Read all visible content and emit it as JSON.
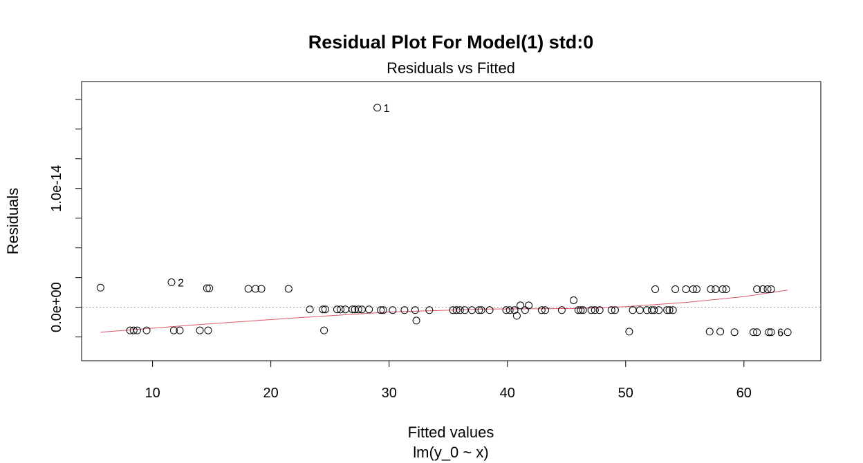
{
  "chart_data": {
    "type": "scatter",
    "title": "Residual Plot For Model(1) std:0",
    "subtitle": "Residuals vs Fitted",
    "xlabel": "Fitted values",
    "xlabel2": "lm(y_0 ~ x)",
    "ylabel": "Residuals",
    "xlim": [
      4,
      66.5
    ],
    "ylim": [
      -4.5e-15,
      1.9e-14
    ],
    "x_ticks": [
      10,
      20,
      30,
      40,
      50,
      60
    ],
    "y_ticks": [
      -2.5e-15,
      0,
      2.5e-15,
      5e-15,
      7.5e-15,
      1e-14,
      1.25e-14,
      1.5e-14,
      1.75e-14
    ],
    "y_tick_labels": [
      {
        "value": 0,
        "label": "0.0e+00"
      },
      {
        "value": 1e-14,
        "label": "1.0e-14"
      }
    ],
    "reference_line": 0,
    "grid": false,
    "points": [
      {
        "x": 5.6,
        "y": 1.65e-15
      },
      {
        "x": 8.1,
        "y": -1.95e-15
      },
      {
        "x": 8.4,
        "y": -1.95e-15
      },
      {
        "x": 8.7,
        "y": -1.95e-15
      },
      {
        "x": 9.5,
        "y": -1.95e-15
      },
      {
        "x": 11.6,
        "y": 2.1e-15
      },
      {
        "x": 11.8,
        "y": -1.95e-15
      },
      {
        "x": 12.3,
        "y": -1.95e-15
      },
      {
        "x": 14.0,
        "y": -1.95e-15
      },
      {
        "x": 14.6,
        "y": 1.6e-15
      },
      {
        "x": 14.8,
        "y": 1.6e-15
      },
      {
        "x": 14.7,
        "y": -1.95e-15
      },
      {
        "x": 18.1,
        "y": 1.55e-15
      },
      {
        "x": 18.7,
        "y": 1.55e-15
      },
      {
        "x": 19.2,
        "y": 1.55e-15
      },
      {
        "x": 21.5,
        "y": 1.55e-15
      },
      {
        "x": 23.3,
        "y": -1.8e-16
      },
      {
        "x": 24.4,
        "y": -1.8e-16
      },
      {
        "x": 24.6,
        "y": -1.8e-16
      },
      {
        "x": 24.5,
        "y": -1.95e-15
      },
      {
        "x": 25.6,
        "y": -1.8e-16
      },
      {
        "x": 25.9,
        "y": -1.8e-16
      },
      {
        "x": 26.3,
        "y": -1.8e-16
      },
      {
        "x": 26.9,
        "y": -1.8e-16
      },
      {
        "x": 27.1,
        "y": -1.8e-16
      },
      {
        "x": 27.4,
        "y": -1.8e-16
      },
      {
        "x": 27.7,
        "y": -1.8e-16
      },
      {
        "x": 28.3,
        "y": -1.8e-16
      },
      {
        "x": 29.0,
        "y": 1.68e-14
      },
      {
        "x": 29.3,
        "y": -2.4e-16
      },
      {
        "x": 29.5,
        "y": -2.4e-16
      },
      {
        "x": 30.3,
        "y": -2.4e-16
      },
      {
        "x": 31.3,
        "y": -2.4e-16
      },
      {
        "x": 32.2,
        "y": -2.4e-16
      },
      {
        "x": 32.3,
        "y": -1.12e-15
      },
      {
        "x": 33.4,
        "y": -2.4e-16
      },
      {
        "x": 35.4,
        "y": -2.4e-16
      },
      {
        "x": 35.7,
        "y": -2.4e-16
      },
      {
        "x": 36.0,
        "y": -2.4e-16
      },
      {
        "x": 36.4,
        "y": -2.4e-16
      },
      {
        "x": 37.0,
        "y": -2.4e-16
      },
      {
        "x": 37.6,
        "y": -2.4e-16
      },
      {
        "x": 37.8,
        "y": -2.4e-16
      },
      {
        "x": 38.5,
        "y": -2.4e-16
      },
      {
        "x": 39.9,
        "y": -2.4e-16
      },
      {
        "x": 40.2,
        "y": -2.4e-16
      },
      {
        "x": 40.6,
        "y": -2.4e-16
      },
      {
        "x": 40.8,
        "y": -7.2e-16
      },
      {
        "x": 41.1,
        "y": 1.6e-16
      },
      {
        "x": 41.5,
        "y": -2.4e-16
      },
      {
        "x": 41.8,
        "y": 1.6e-16
      },
      {
        "x": 42.9,
        "y": -2.4e-16
      },
      {
        "x": 43.2,
        "y": -2.4e-16
      },
      {
        "x": 44.6,
        "y": -2.4e-16
      },
      {
        "x": 45.6,
        "y": 5.9e-16
      },
      {
        "x": 46.0,
        "y": -2.4e-16
      },
      {
        "x": 46.2,
        "y": -2.4e-16
      },
      {
        "x": 46.4,
        "y": -2.4e-16
      },
      {
        "x": 47.1,
        "y": -2.4e-16
      },
      {
        "x": 47.4,
        "y": -2.4e-16
      },
      {
        "x": 47.8,
        "y": -2.4e-16
      },
      {
        "x": 48.8,
        "y": -2.4e-16
      },
      {
        "x": 49.1,
        "y": -2.4e-16
      },
      {
        "x": 50.3,
        "y": -2.05e-15
      },
      {
        "x": 50.6,
        "y": -2.4e-16
      },
      {
        "x": 51.2,
        "y": -2.4e-16
      },
      {
        "x": 51.8,
        "y": -2.4e-16
      },
      {
        "x": 52.2,
        "y": -2.4e-16
      },
      {
        "x": 52.4,
        "y": -2.4e-16
      },
      {
        "x": 52.5,
        "y": 1.52e-15
      },
      {
        "x": 52.8,
        "y": -2.4e-16
      },
      {
        "x": 53.5,
        "y": -2.4e-16
      },
      {
        "x": 53.7,
        "y": -2.4e-16
      },
      {
        "x": 54.0,
        "y": -2.4e-16
      },
      {
        "x": 54.2,
        "y": 1.52e-15
      },
      {
        "x": 55.1,
        "y": 1.52e-15
      },
      {
        "x": 55.7,
        "y": 1.52e-15
      },
      {
        "x": 56.0,
        "y": 1.52e-15
      },
      {
        "x": 57.1,
        "y": -2.05e-15
      },
      {
        "x": 57.2,
        "y": 1.52e-15
      },
      {
        "x": 57.6,
        "y": 1.52e-15
      },
      {
        "x": 58.0,
        "y": -2.05e-15
      },
      {
        "x": 58.2,
        "y": 1.52e-15
      },
      {
        "x": 58.5,
        "y": 1.52e-15
      },
      {
        "x": 59.2,
        "y": -2.1e-15
      },
      {
        "x": 60.8,
        "y": -2.1e-15
      },
      {
        "x": 61.1,
        "y": 1.52e-15
      },
      {
        "x": 61.1,
        "y": -2.1e-15
      },
      {
        "x": 61.6,
        "y": 1.52e-15
      },
      {
        "x": 62.0,
        "y": 1.52e-15
      },
      {
        "x": 62.1,
        "y": -2.1e-15
      },
      {
        "x": 62.3,
        "y": 1.52e-15
      },
      {
        "x": 62.3,
        "y": -2.1e-15
      },
      {
        "x": 63.7,
        "y": -2.1e-15
      }
    ],
    "point_labels": [
      {
        "text": "1",
        "x": 29.0,
        "y": 1.68e-14
      },
      {
        "text": "2",
        "x": 11.6,
        "y": 2.1e-15
      },
      {
        "text": "6",
        "x": 62.3,
        "y": -2.1e-15
      }
    ],
    "smooth_line": {
      "color": "#DF536B",
      "points": [
        [
          5.6,
          -2.1e-15
        ],
        [
          14,
          -1.45e-15
        ],
        [
          22,
          -9e-16
        ],
        [
          30,
          -4e-16
        ],
        [
          38,
          -1.5e-16
        ],
        [
          46,
          -1e-16
        ],
        [
          50,
          5e-17
        ],
        [
          55,
          4e-16
        ],
        [
          60,
          9e-16
        ],
        [
          63.7,
          1.45e-15
        ]
      ]
    }
  }
}
